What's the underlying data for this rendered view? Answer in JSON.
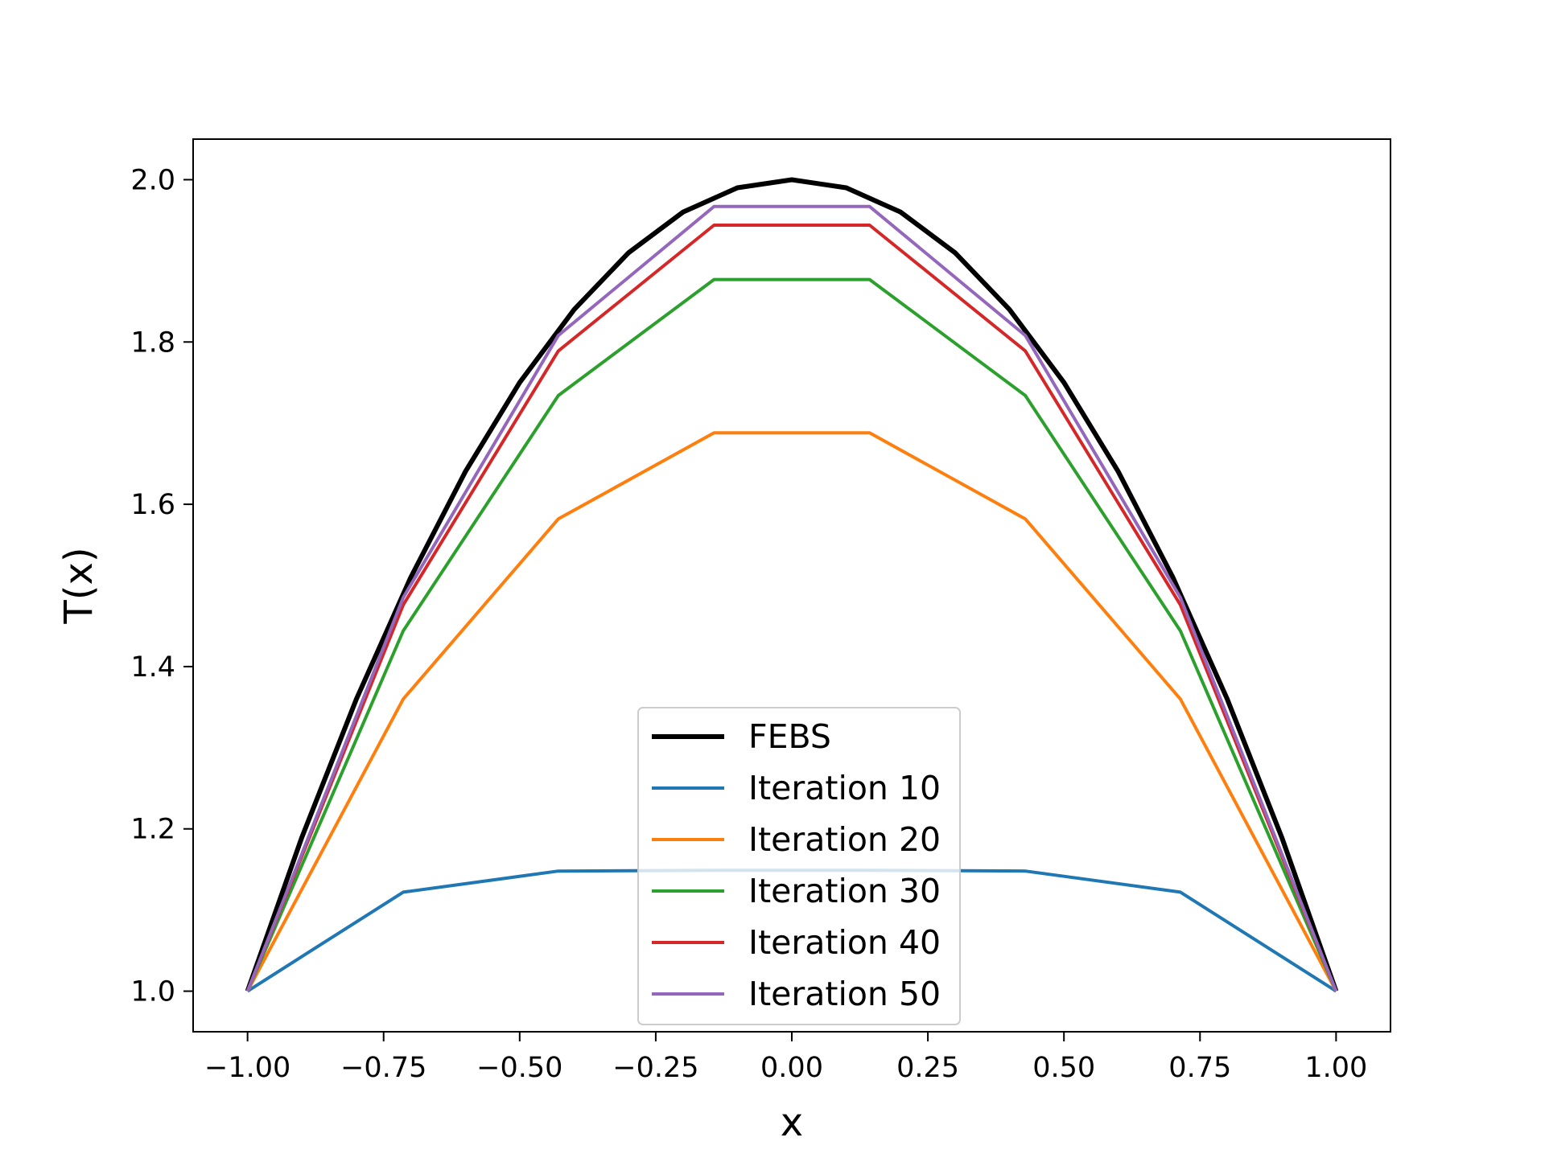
{
  "chart_data": {
    "type": "line",
    "title": "",
    "xlabel": "x",
    "ylabel": "T(x)",
    "xlim": [
      -1.1,
      1.1
    ],
    "ylim": [
      0.95,
      2.05
    ],
    "grid": false,
    "legend_position": "lower center",
    "xticks": [
      {
        "value": -1.0,
        "label": "−1.00"
      },
      {
        "value": -0.75,
        "label": "−0.75"
      },
      {
        "value": -0.5,
        "label": "−0.50"
      },
      {
        "value": -0.25,
        "label": "−0.25"
      },
      {
        "value": 0.0,
        "label": "0.00"
      },
      {
        "value": 0.25,
        "label": "0.25"
      },
      {
        "value": 0.5,
        "label": "0.50"
      },
      {
        "value": 0.75,
        "label": "0.75"
      },
      {
        "value": 1.0,
        "label": "1.00"
      }
    ],
    "yticks": [
      {
        "value": 1.0,
        "label": "1.0"
      },
      {
        "value": 1.2,
        "label": "1.2"
      },
      {
        "value": 1.4,
        "label": "1.4"
      },
      {
        "value": 1.6,
        "label": "1.6"
      },
      {
        "value": 1.8,
        "label": "1.8"
      },
      {
        "value": 2.0,
        "label": "2.0"
      }
    ],
    "curve": {
      "name": "FEBS",
      "color": "#000000",
      "x": [
        -1.0,
        -0.9,
        -0.8,
        -0.7,
        -0.6,
        -0.5,
        -0.4,
        -0.3,
        -0.2,
        -0.1,
        0.0,
        0.1,
        0.2,
        0.3,
        0.4,
        0.5,
        0.6,
        0.7,
        0.8,
        0.9,
        1.0
      ],
      "y": [
        1.0,
        1.19,
        1.36,
        1.51,
        1.64,
        1.75,
        1.84,
        1.91,
        1.96,
        1.99,
        2.0,
        1.99,
        1.96,
        1.91,
        1.84,
        1.75,
        1.64,
        1.51,
        1.36,
        1.19,
        1.0
      ]
    },
    "x": [
      -1.0,
      -0.714,
      -0.429,
      -0.143,
      0.143,
      0.429,
      0.714,
      1.0
    ],
    "series": [
      {
        "name": "Iteration 10",
        "color": "#1f77b4",
        "values": [
          1.0,
          1.122,
          1.148,
          1.149,
          1.149,
          1.148,
          1.122,
          1.0
        ]
      },
      {
        "name": "Iteration 20",
        "color": "#ff7f0e",
        "values": [
          1.0,
          1.36,
          1.582,
          1.688,
          1.688,
          1.582,
          1.36,
          1.0
        ]
      },
      {
        "name": "Iteration 30",
        "color": "#2ca02c",
        "values": [
          1.0,
          1.444,
          1.734,
          1.877,
          1.877,
          1.734,
          1.444,
          1.0
        ]
      },
      {
        "name": "Iteration 40",
        "color": "#d62728",
        "values": [
          1.0,
          1.476,
          1.789,
          1.944,
          1.944,
          1.789,
          1.476,
          1.0
        ]
      },
      {
        "name": "Iteration 50",
        "color": "#9467bd",
        "values": [
          1.0,
          1.485,
          1.808,
          1.967,
          1.967,
          1.808,
          1.485,
          1.0
        ]
      }
    ]
  }
}
